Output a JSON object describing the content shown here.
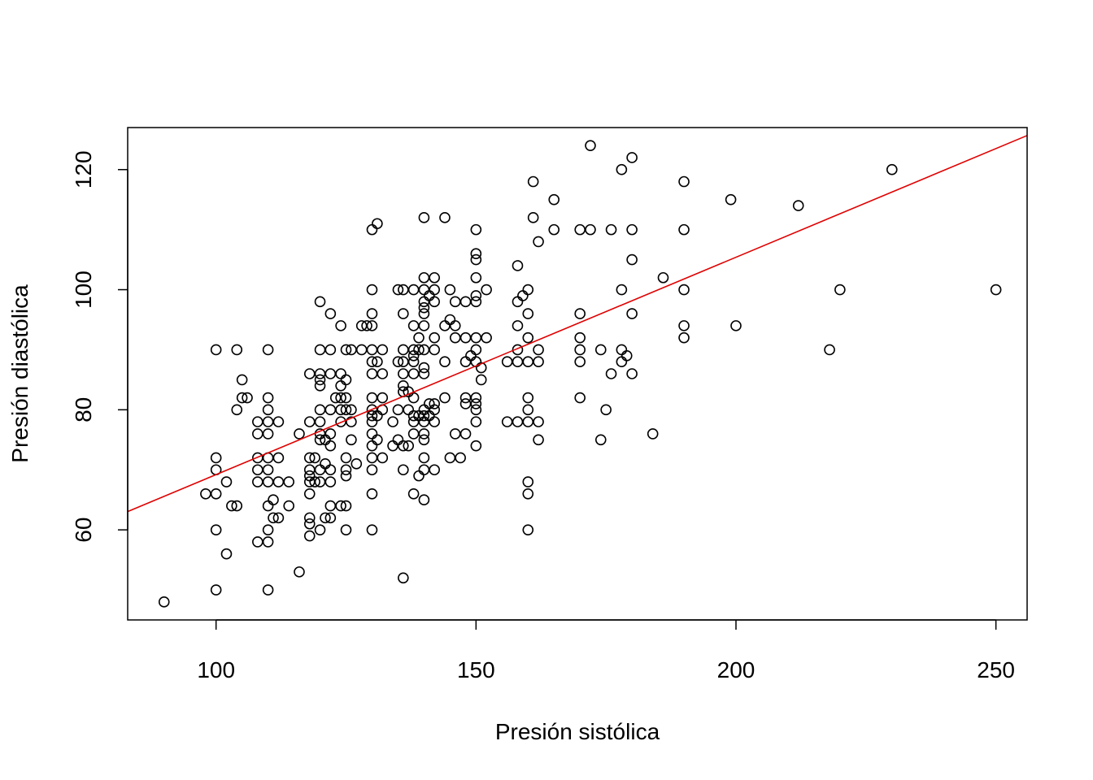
{
  "chart_data": {
    "type": "scatter",
    "title": "",
    "xlabel": "Presión sistólica",
    "ylabel": "Presión diastólica",
    "xlim": [
      83,
      256
    ],
    "ylim": [
      45,
      127
    ],
    "xticks": [
      100,
      150,
      200,
      250
    ],
    "yticks": [
      60,
      80,
      100,
      120
    ],
    "xtick_labels": [
      "100",
      "150",
      "200",
      "250"
    ],
    "ytick_labels": [
      "60",
      "80",
      "100",
      "120"
    ],
    "point_color": "#000000",
    "line_color": "#e00000",
    "grid": false,
    "points": [
      [
        90,
        48
      ],
      [
        98,
        66
      ],
      [
        100,
        90
      ],
      [
        100,
        72
      ],
      [
        100,
        70
      ],
      [
        100,
        66
      ],
      [
        100,
        60
      ],
      [
        100,
        50
      ],
      [
        102,
        68
      ],
      [
        102,
        56
      ],
      [
        103,
        64
      ],
      [
        104,
        90
      ],
      [
        104,
        80
      ],
      [
        104,
        64
      ],
      [
        105,
        85
      ],
      [
        105,
        82
      ],
      [
        106,
        82
      ],
      [
        108,
        78
      ],
      [
        108,
        76
      ],
      [
        108,
        72
      ],
      [
        108,
        70
      ],
      [
        108,
        68
      ],
      [
        108,
        58
      ],
      [
        110,
        90
      ],
      [
        110,
        82
      ],
      [
        110,
        80
      ],
      [
        110,
        78
      ],
      [
        110,
        76
      ],
      [
        110,
        72
      ],
      [
        110,
        70
      ],
      [
        110,
        68
      ],
      [
        110,
        64
      ],
      [
        110,
        60
      ],
      [
        110,
        58
      ],
      [
        110,
        50
      ],
      [
        111,
        65
      ],
      [
        111,
        62
      ],
      [
        112,
        78
      ],
      [
        112,
        72
      ],
      [
        112,
        68
      ],
      [
        112,
        62
      ],
      [
        114,
        68
      ],
      [
        114,
        64
      ],
      [
        116,
        76
      ],
      [
        116,
        53
      ],
      [
        118,
        86
      ],
      [
        118,
        78
      ],
      [
        118,
        72
      ],
      [
        118,
        70
      ],
      [
        118,
        69
      ],
      [
        118,
        68
      ],
      [
        118,
        66
      ],
      [
        118,
        62
      ],
      [
        118,
        61
      ],
      [
        118,
        59
      ],
      [
        119,
        72
      ],
      [
        119,
        68
      ],
      [
        120,
        98
      ],
      [
        120,
        90
      ],
      [
        120,
        86
      ],
      [
        120,
        85
      ],
      [
        120,
        84
      ],
      [
        120,
        80
      ],
      [
        120,
        78
      ],
      [
        120,
        76
      ],
      [
        120,
        75
      ],
      [
        120,
        70
      ],
      [
        120,
        68
      ],
      [
        120,
        60
      ],
      [
        121,
        75
      ],
      [
        121,
        71
      ],
      [
        121,
        62
      ],
      [
        122,
        96
      ],
      [
        122,
        90
      ],
      [
        122,
        86
      ],
      [
        122,
        80
      ],
      [
        122,
        76
      ],
      [
        122,
        74
      ],
      [
        122,
        70
      ],
      [
        122,
        68
      ],
      [
        122,
        64
      ],
      [
        122,
        62
      ],
      [
        123,
        82
      ],
      [
        124,
        94
      ],
      [
        124,
        86
      ],
      [
        124,
        84
      ],
      [
        124,
        82
      ],
      [
        124,
        80
      ],
      [
        124,
        78
      ],
      [
        124,
        64
      ],
      [
        125,
        90
      ],
      [
        125,
        85
      ],
      [
        125,
        82
      ],
      [
        125,
        80
      ],
      [
        125,
        72
      ],
      [
        125,
        70
      ],
      [
        125,
        69
      ],
      [
        125,
        64
      ],
      [
        125,
        60
      ],
      [
        126,
        90
      ],
      [
        126,
        80
      ],
      [
        126,
        78
      ],
      [
        126,
        75
      ],
      [
        127,
        71
      ],
      [
        128,
        94
      ],
      [
        128,
        90
      ],
      [
        129,
        94
      ],
      [
        130,
        110
      ],
      [
        130,
        100
      ],
      [
        130,
        96
      ],
      [
        130,
        94
      ],
      [
        130,
        90
      ],
      [
        130,
        88
      ],
      [
        130,
        86
      ],
      [
        130,
        82
      ],
      [
        130,
        80
      ],
      [
        130,
        79
      ],
      [
        130,
        78
      ],
      [
        130,
        76
      ],
      [
        130,
        74
      ],
      [
        130,
        72
      ],
      [
        130,
        70
      ],
      [
        130,
        66
      ],
      [
        130,
        60
      ],
      [
        131,
        111
      ],
      [
        131,
        88
      ],
      [
        131,
        79
      ],
      [
        131,
        75
      ],
      [
        132,
        90
      ],
      [
        132,
        86
      ],
      [
        132,
        82
      ],
      [
        132,
        80
      ],
      [
        132,
        72
      ],
      [
        134,
        78
      ],
      [
        134,
        74
      ],
      [
        135,
        100
      ],
      [
        135,
        88
      ],
      [
        135,
        80
      ],
      [
        135,
        75
      ],
      [
        136,
        100
      ],
      [
        136,
        96
      ],
      [
        136,
        90
      ],
      [
        136,
        88
      ],
      [
        136,
        86
      ],
      [
        136,
        84
      ],
      [
        136,
        83
      ],
      [
        136,
        74
      ],
      [
        136,
        70
      ],
      [
        136,
        52
      ],
      [
        137,
        83
      ],
      [
        137,
        80
      ],
      [
        137,
        74
      ],
      [
        138,
        100
      ],
      [
        138,
        94
      ],
      [
        138,
        90
      ],
      [
        138,
        89
      ],
      [
        138,
        88
      ],
      [
        138,
        86
      ],
      [
        138,
        82
      ],
      [
        138,
        79
      ],
      [
        138,
        78
      ],
      [
        138,
        76
      ],
      [
        138,
        66
      ],
      [
        139,
        92
      ],
      [
        139,
        90
      ],
      [
        139,
        79
      ],
      [
        139,
        69
      ],
      [
        140,
        112
      ],
      [
        140,
        102
      ],
      [
        140,
        100
      ],
      [
        140,
        98
      ],
      [
        140,
        97
      ],
      [
        140,
        96
      ],
      [
        140,
        94
      ],
      [
        140,
        90
      ],
      [
        140,
        87
      ],
      [
        140,
        86
      ],
      [
        140,
        80
      ],
      [
        140,
        79
      ],
      [
        140,
        78
      ],
      [
        140,
        76
      ],
      [
        140,
        75
      ],
      [
        140,
        72
      ],
      [
        140,
        70
      ],
      [
        140,
        65
      ],
      [
        141,
        99
      ],
      [
        141,
        81
      ],
      [
        141,
        79
      ],
      [
        142,
        102
      ],
      [
        142,
        100
      ],
      [
        142,
        98
      ],
      [
        142,
        92
      ],
      [
        142,
        90
      ],
      [
        142,
        81
      ],
      [
        142,
        80
      ],
      [
        142,
        78
      ],
      [
        142,
        70
      ],
      [
        144,
        112
      ],
      [
        144,
        94
      ],
      [
        144,
        88
      ],
      [
        144,
        82
      ],
      [
        145,
        100
      ],
      [
        145,
        95
      ],
      [
        145,
        72
      ],
      [
        146,
        98
      ],
      [
        146,
        94
      ],
      [
        146,
        92
      ],
      [
        146,
        76
      ],
      [
        147,
        72
      ],
      [
        148,
        98
      ],
      [
        148,
        92
      ],
      [
        148,
        88
      ],
      [
        148,
        82
      ],
      [
        148,
        81
      ],
      [
        148,
        76
      ],
      [
        149,
        89
      ],
      [
        150,
        110
      ],
      [
        150,
        106
      ],
      [
        150,
        105
      ],
      [
        150,
        102
      ],
      [
        150,
        99
      ],
      [
        150,
        98
      ],
      [
        150,
        92
      ],
      [
        150,
        90
      ],
      [
        150,
        88
      ],
      [
        150,
        82
      ],
      [
        150,
        81
      ],
      [
        150,
        80
      ],
      [
        150,
        78
      ],
      [
        150,
        74
      ],
      [
        151,
        87
      ],
      [
        151,
        85
      ],
      [
        152,
        100
      ],
      [
        152,
        92
      ],
      [
        156,
        88
      ],
      [
        156,
        78
      ],
      [
        158,
        104
      ],
      [
        158,
        98
      ],
      [
        158,
        94
      ],
      [
        158,
        90
      ],
      [
        158,
        88
      ],
      [
        158,
        78
      ],
      [
        159,
        99
      ],
      [
        160,
        100
      ],
      [
        160,
        96
      ],
      [
        160,
        92
      ],
      [
        160,
        88
      ],
      [
        160,
        82
      ],
      [
        160,
        80
      ],
      [
        160,
        78
      ],
      [
        160,
        68
      ],
      [
        160,
        66
      ],
      [
        160,
        60
      ],
      [
        161,
        118
      ],
      [
        161,
        112
      ],
      [
        162,
        108
      ],
      [
        162,
        90
      ],
      [
        162,
        88
      ],
      [
        162,
        78
      ],
      [
        162,
        75
      ],
      [
        165,
        115
      ],
      [
        165,
        110
      ],
      [
        170,
        110
      ],
      [
        170,
        96
      ],
      [
        170,
        92
      ],
      [
        170,
        90
      ],
      [
        170,
        88
      ],
      [
        170,
        82
      ],
      [
        172,
        124
      ],
      [
        172,
        110
      ],
      [
        174,
        90
      ],
      [
        174,
        75
      ],
      [
        175,
        80
      ],
      [
        176,
        110
      ],
      [
        176,
        86
      ],
      [
        178,
        120
      ],
      [
        178,
        100
      ],
      [
        178,
        90
      ],
      [
        178,
        88
      ],
      [
        179,
        89
      ],
      [
        180,
        122
      ],
      [
        180,
        110
      ],
      [
        180,
        105
      ],
      [
        180,
        96
      ],
      [
        180,
        86
      ],
      [
        184,
        76
      ],
      [
        186,
        102
      ],
      [
        190,
        118
      ],
      [
        190,
        110
      ],
      [
        190,
        100
      ],
      [
        190,
        94
      ],
      [
        190,
        92
      ],
      [
        199,
        115
      ],
      [
        200,
        94
      ],
      [
        212,
        114
      ],
      [
        218,
        90
      ],
      [
        220,
        100
      ],
      [
        230,
        120
      ],
      [
        250,
        100
      ]
    ],
    "regression": {
      "intercept": 33.0,
      "slope": 0.362
    }
  }
}
